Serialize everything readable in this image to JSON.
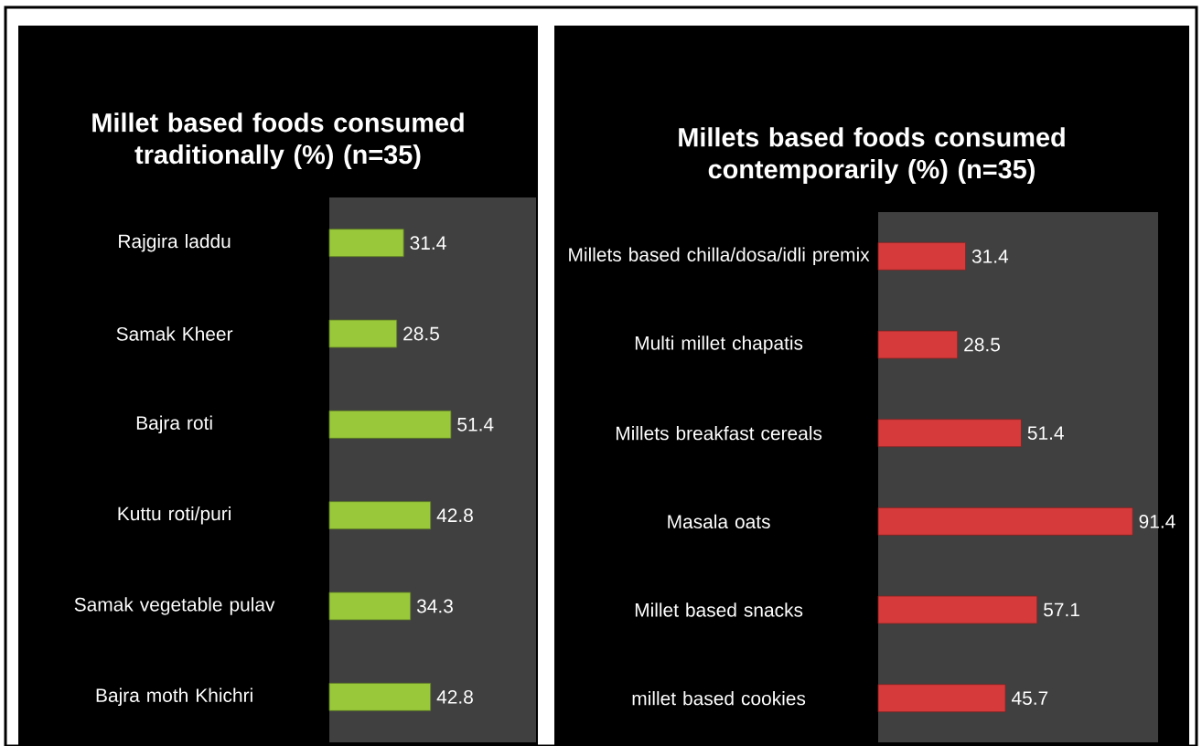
{
  "chart_data": [
    {
      "type": "bar",
      "orientation": "horizontal",
      "title": "Millet based foods consumed traditionally (%) (n=35)",
      "categories": [
        "Rajgira laddu",
        "Samak Kheer",
        "Bajra roti",
        "Kuttu roti/puri",
        "Samak vegetable pulav",
        "Bajra moth Khichri"
      ],
      "values": [
        31.4,
        28.5,
        51.4,
        42.8,
        34.3,
        42.8
      ],
      "color": "#99c93a",
      "data_labels": true
    },
    {
      "type": "bar",
      "orientation": "horizontal",
      "title": "Millets based foods consumed contemporarily (%) (n=35)",
      "categories": [
        "Millets based chilla/dosa/idli premix",
        "Multi millet chapatis",
        "Millets breakfast cereals",
        "Masala oats",
        "Millet based snacks",
        "millet based cookies"
      ],
      "values": [
        31.4,
        28.5,
        51.4,
        91.4,
        57.1,
        45.7
      ],
      "color": "#d63a3a",
      "data_labels": true
    }
  ]
}
